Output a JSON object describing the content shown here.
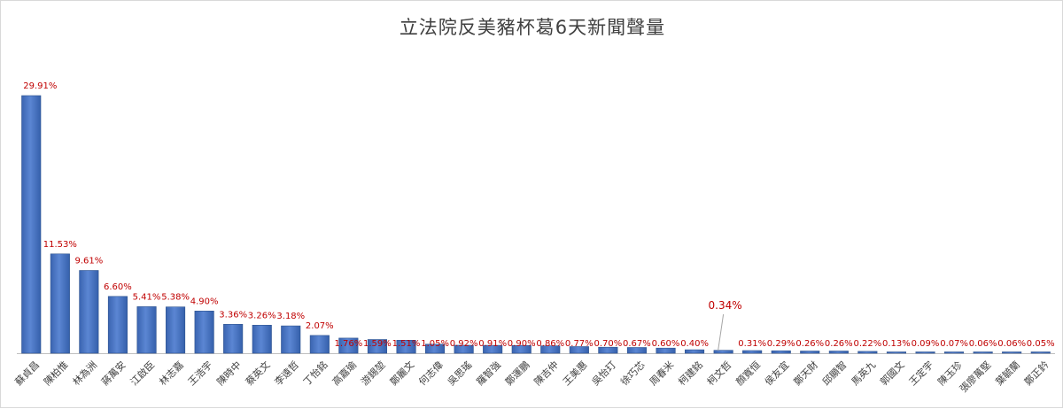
{
  "chart_data": {
    "type": "bar",
    "title": "立法院反美豬杯葛6天新聞聲量",
    "xlabel": "",
    "ylabel": "",
    "ylim": [
      0,
      32
    ],
    "grid": false,
    "legend": "none",
    "bar_color": "#4472C4",
    "label_color": "#C00000",
    "categories": [
      "蘇貞昌",
      "陳柏惟",
      "林為洲",
      "蔣萬安",
      "江啟臣",
      "林志嘉",
      "王浩宇",
      "陳時中",
      "蔡英文",
      "李遠哲",
      "丁怡銘",
      "高嘉瑜",
      "游錫堃",
      "鄭麗文",
      "何志偉",
      "吳思瑤",
      "羅智強",
      "鄭運鵬",
      "陳吉仲",
      "王美惠",
      "吳怡玎",
      "徐巧芯",
      "周春米",
      "柯建銘",
      "柯文哲",
      "顏寬恒",
      "侯友宜",
      "鄭天財",
      "邱顯智",
      "馬英九",
      "郭國文",
      "王定宇",
      "陳玉珍",
      "張廖萬堅",
      "葉毓蘭",
      "鄭正鈐"
    ],
    "values": [
      29.91,
      11.53,
      9.61,
      6.6,
      5.41,
      5.38,
      4.9,
      3.36,
      3.26,
      3.18,
      2.07,
      1.76,
      1.59,
      1.51,
      1.05,
      0.92,
      0.91,
      0.9,
      0.86,
      0.77,
      0.7,
      0.67,
      0.6,
      0.4,
      0.34,
      0.31,
      0.29,
      0.26,
      0.26,
      0.22,
      0.13,
      0.09,
      0.07,
      0.06,
      0.06,
      0.05
    ],
    "data_labels": [
      "29.91%",
      "11.53%",
      "9.61%",
      "6.60%",
      "5.41%",
      "5.38%",
      "4.90%",
      "3.36%",
      "3.26%",
      "3.18%",
      "2.07%",
      "1.76%",
      "1.59%",
      "1.51%",
      "1.05%",
      "0.92%",
      "0.91%",
      "0.90%",
      "0.86%",
      "0.77%",
      "0.70%",
      "0.67%",
      "0.60%",
      "0.40%",
      "0.34%",
      "0.31%",
      "0.29%",
      "0.26%",
      "0.26%",
      "0.22%",
      "0.13%",
      "0.09%",
      "0.07%",
      "0.06%",
      "0.06%",
      "0.05%"
    ]
  }
}
